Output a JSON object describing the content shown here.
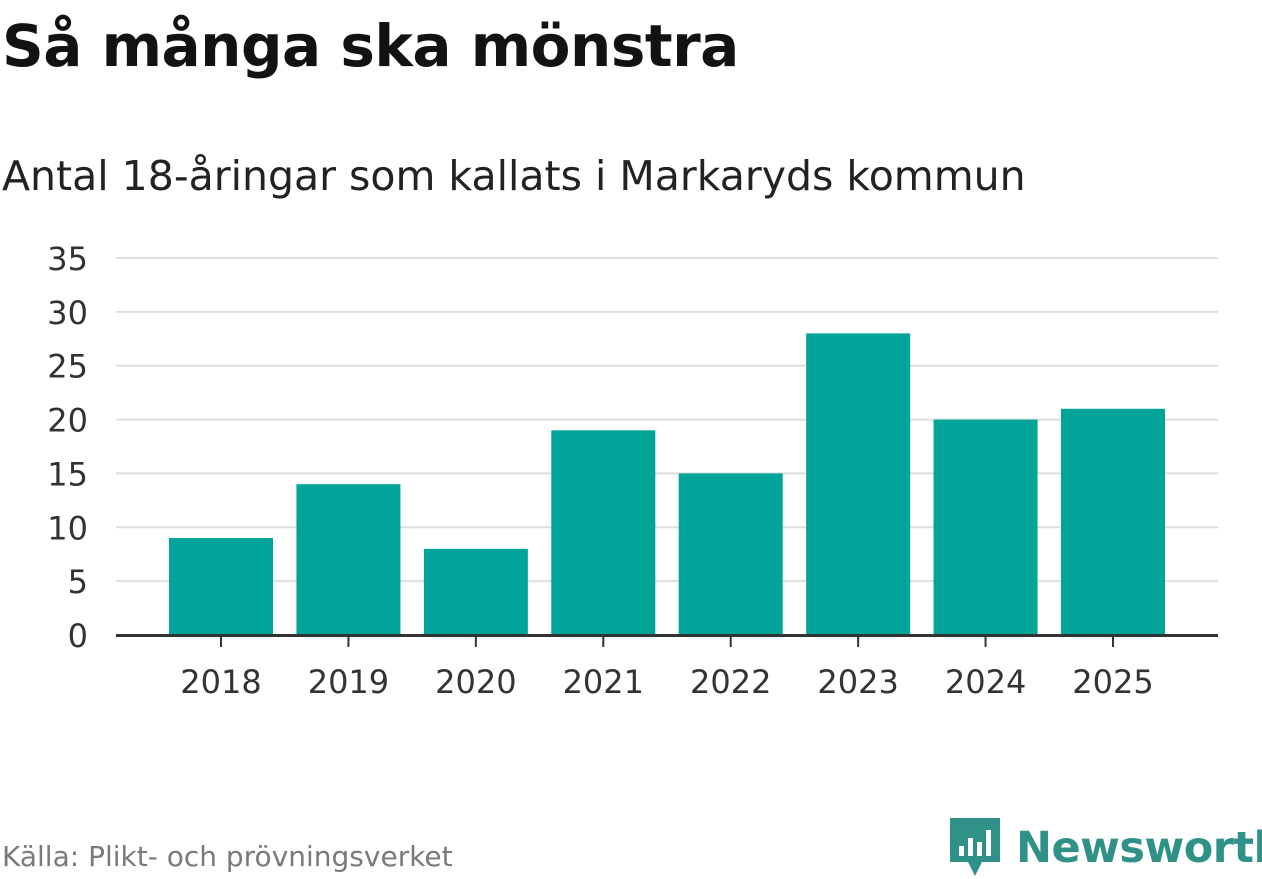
{
  "title": "Så många ska mönstra",
  "subtitle": "Antal 18-åringar som kallats i Markaryds kommun",
  "source": "Källa: Plikt- och prövningsverket",
  "brand": {
    "name": "Newsworthy",
    "icon": "newsworthy-logo-icon",
    "color": "#2f9188"
  },
  "colors": {
    "bar": "#00a499",
    "grid": "#dedede",
    "axis": "#333333",
    "tick_text": "#333333"
  },
  "chart_data": {
    "type": "bar",
    "categories": [
      "2018",
      "2019",
      "2020",
      "2021",
      "2022",
      "2023",
      "2024",
      "2025"
    ],
    "values": [
      9,
      14,
      8,
      19,
      15,
      28,
      20,
      21
    ],
    "title": "Så många ska mönstra",
    "subtitle": "Antal 18-åringar som kallats i Markaryds kommun",
    "xlabel": "",
    "ylabel": "",
    "ylim": [
      0,
      35
    ],
    "yticks": [
      0,
      5,
      10,
      15,
      20,
      25,
      30,
      35
    ],
    "grid": true,
    "legend": "none"
  }
}
